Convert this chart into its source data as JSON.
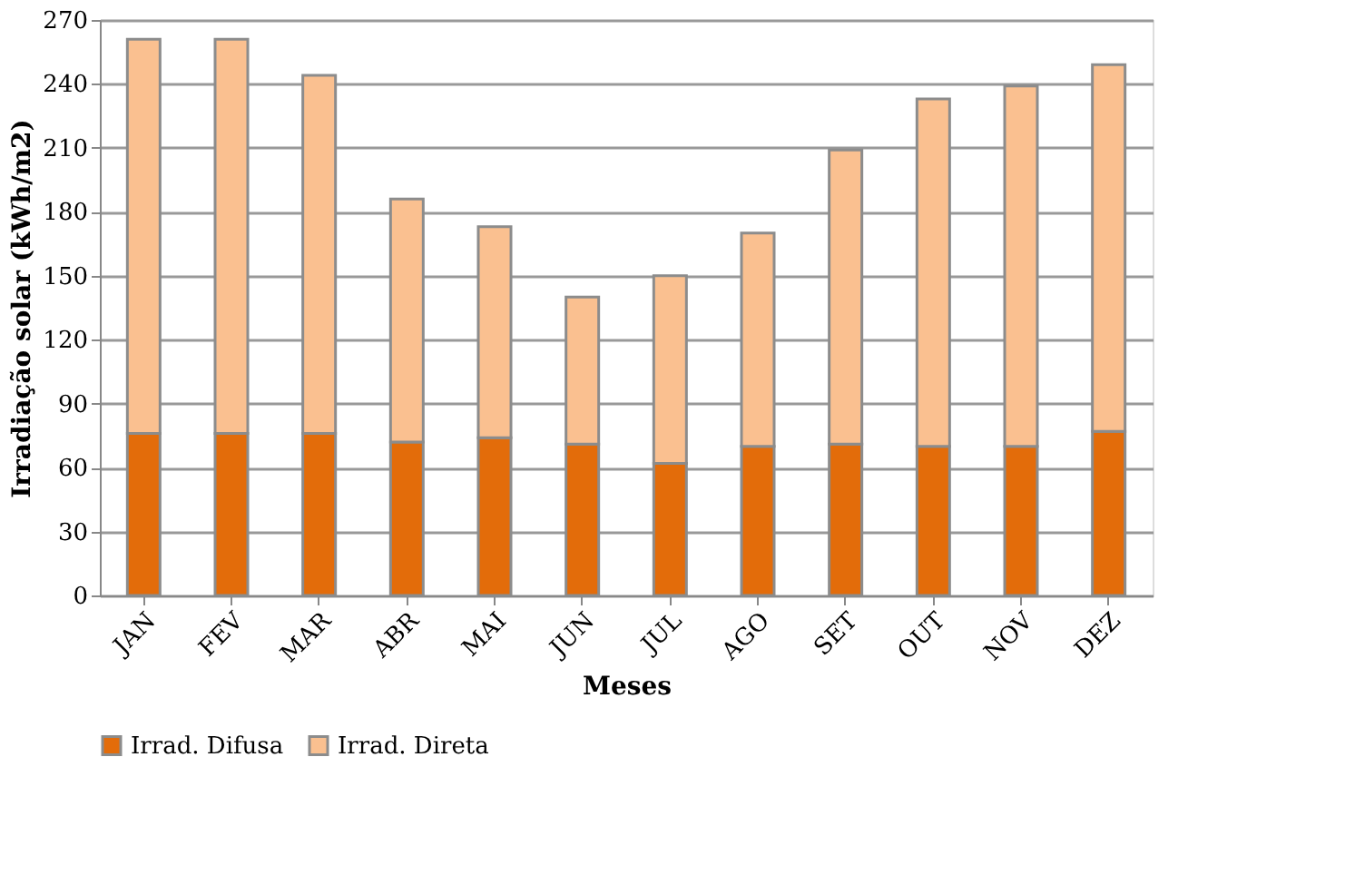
{
  "chart_data": {
    "type": "bar",
    "stacked": true,
    "xlabel": "Meses",
    "ylabel": "Irradiação solar (kWh/m2)",
    "categories": [
      "JAN",
      "FEV",
      "MAR",
      "ABR",
      "MAI",
      "JUN",
      "JUL",
      "AGO",
      "SET",
      "OUT",
      "NOV",
      "DEZ"
    ],
    "series": [
      {
        "name": "Irrad. Difusa",
        "color": "#e36c0a",
        "values": [
          76,
          76,
          76,
          72,
          74,
          71,
          62,
          70,
          71,
          70,
          70,
          77
        ]
      },
      {
        "name": "Irrad. Direta",
        "color": "#fac090",
        "values": [
          185,
          185,
          168,
          114,
          99,
          69,
          88,
          100,
          138,
          163,
          169,
          172
        ]
      }
    ],
    "ylim": [
      0,
      270
    ],
    "yticks": [
      0,
      30,
      60,
      90,
      120,
      150,
      180,
      210,
      240,
      270
    ],
    "grid": "y",
    "legend": "bottom"
  }
}
